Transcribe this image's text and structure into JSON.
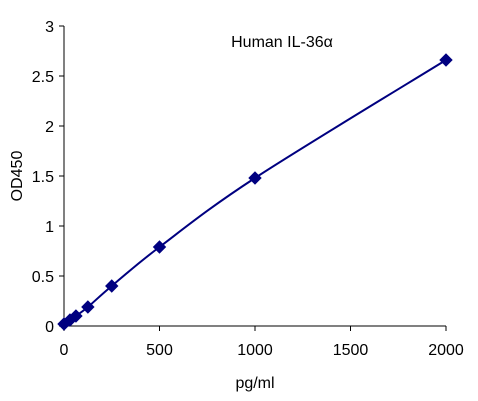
{
  "chart_data": {
    "type": "scatter",
    "title": "Human  IL-36α",
    "xlabel": "pg/ml",
    "ylabel": "OD450",
    "xlim": [
      0,
      2000
    ],
    "ylim": [
      0,
      3
    ],
    "x_ticks": [
      0,
      500,
      1000,
      1500,
      2000
    ],
    "y_ticks": [
      0,
      0.5,
      1,
      1.5,
      2,
      2.5,
      3
    ],
    "x_tick_labels": [
      "0",
      "500",
      "1000",
      "1500",
      "2000"
    ],
    "y_tick_labels": [
      "0",
      "0.5",
      "1",
      "1.5",
      "2",
      "2.5",
      "3"
    ],
    "grid": false,
    "legend": "none",
    "series": [
      {
        "x": [
          0,
          31.25,
          62.5,
          125,
          250,
          500,
          1000,
          2000
        ],
        "y": [
          0.02,
          0.06,
          0.1,
          0.19,
          0.4,
          0.79,
          1.48,
          2.66
        ]
      }
    ],
    "trendline": "smooth curve through points",
    "colors": {
      "series": "#000080",
      "axis": "#000000"
    }
  }
}
